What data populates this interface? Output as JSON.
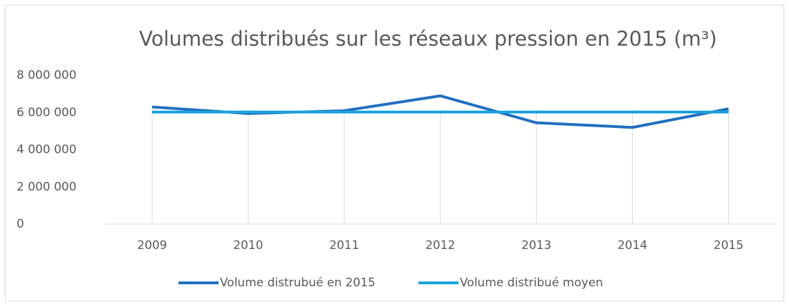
{
  "chart_data": {
    "type": "line",
    "title": "Volumes distribués sur les réseaux pression en 2015 (m³)",
    "categories": [
      "2009",
      "2010",
      "2011",
      "2012",
      "2013",
      "2014",
      "2015"
    ],
    "series": [
      {
        "name": "Volume distrubué en 2015",
        "color": "#1f6fc1",
        "values": [
          6300000,
          5950000,
          6100000,
          6900000,
          5450000,
          5200000,
          6200000
        ]
      },
      {
        "name": "Volume distribué moyen",
        "color": "#1aa3dc",
        "values": [
          6030000,
          6030000,
          6030000,
          6030000,
          6030000,
          6030000,
          6030000
        ]
      }
    ],
    "ylim": [
      0,
      8000000
    ],
    "yticks": [
      0,
      {
        "value": 2000000,
        "label": "2 000 000"
      },
      {
        "value": 4000000,
        "label": "4 000 000"
      },
      {
        "value": 6000000,
        "label": "6 000 000"
      },
      {
        "value": 8000000,
        "label": "8 000 000"
      }
    ],
    "grid": true,
    "legend": "bottom"
  }
}
